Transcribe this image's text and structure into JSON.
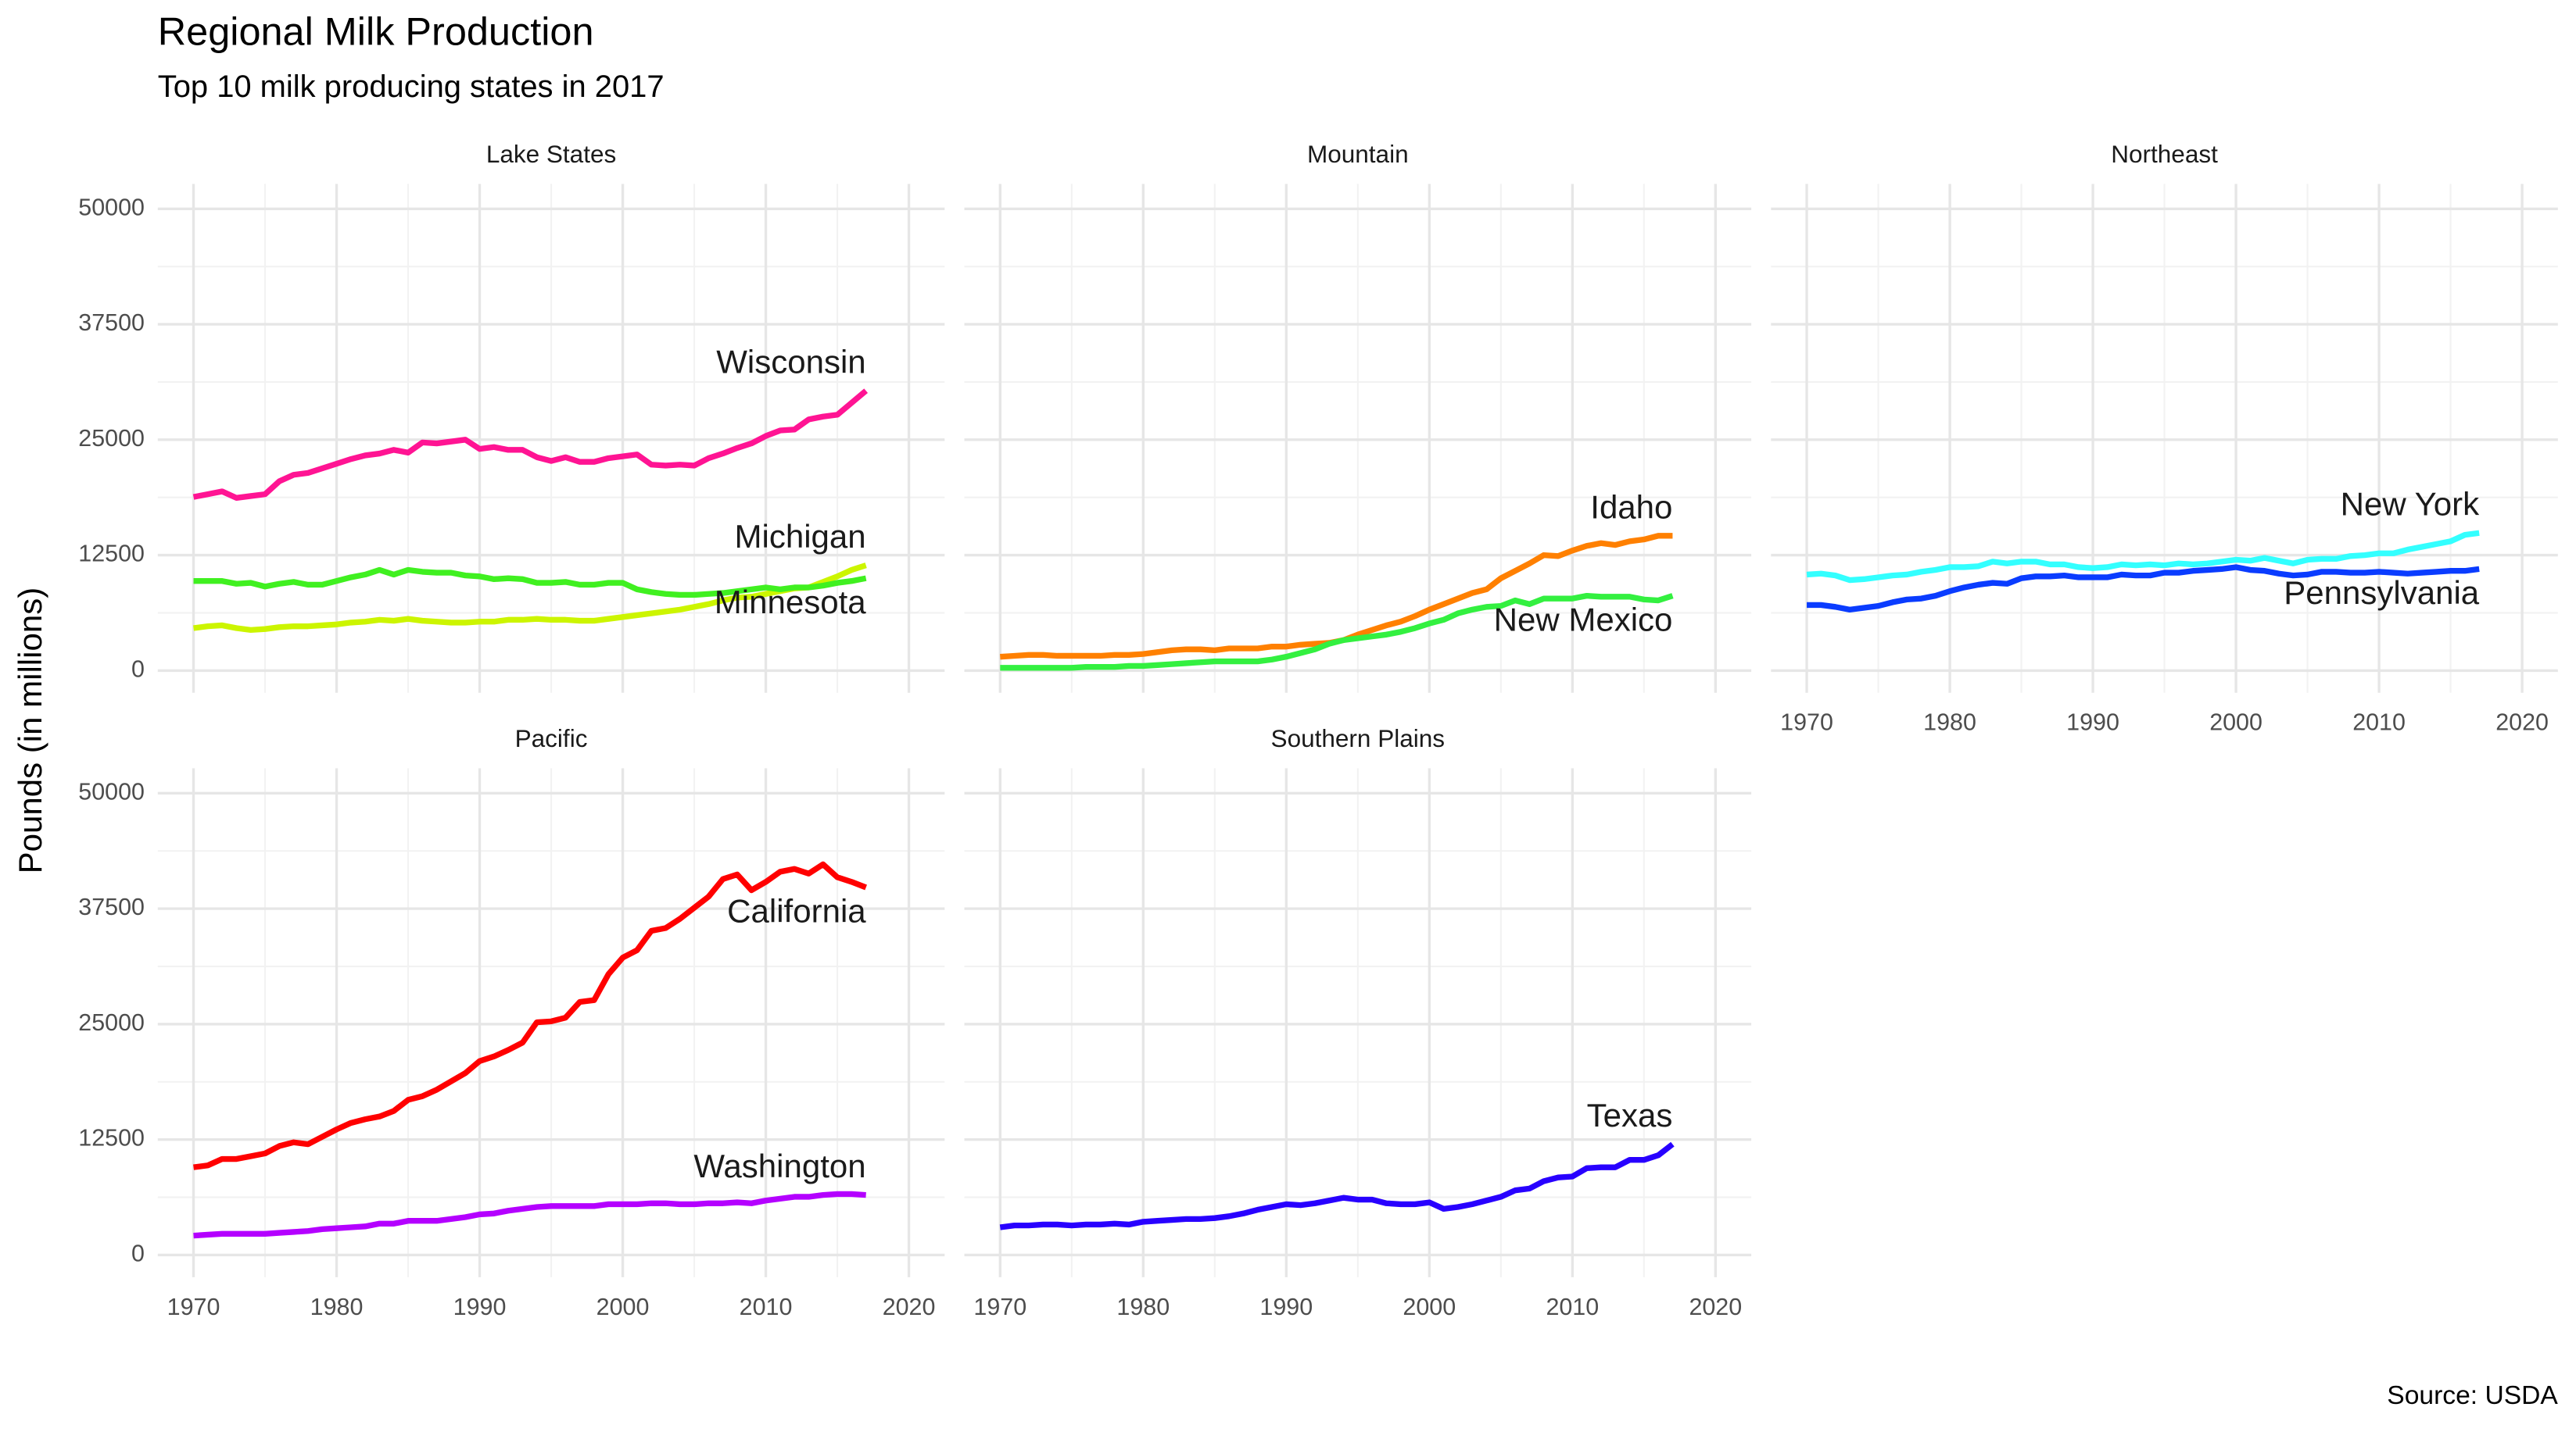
{
  "chart_data": {
    "type": "line",
    "title": "Regional Milk Production",
    "subtitle": "Top 10 milk producing states in 2017",
    "y_label": "Pounds (in millions)",
    "caption": "Source: USDA",
    "grid": true,
    "minor_grid": true,
    "xlim": [
      1967.5,
      2022.5
    ],
    "xticks": [
      1970,
      1980,
      1990,
      2000,
      2010,
      2020
    ],
    "ylim": [
      -2400,
      52700
    ],
    "yticks": [
      0,
      12500,
      25000,
      37500,
      50000
    ],
    "x": [
      1970,
      1971,
      1972,
      1973,
      1974,
      1975,
      1976,
      1977,
      1978,
      1979,
      1980,
      1981,
      1982,
      1983,
      1984,
      1985,
      1986,
      1987,
      1988,
      1989,
      1990,
      1991,
      1992,
      1993,
      1994,
      1995,
      1996,
      1997,
      1998,
      1999,
      2000,
      2001,
      2002,
      2003,
      2004,
      2005,
      2006,
      2007,
      2008,
      2009,
      2010,
      2011,
      2012,
      2013,
      2014,
      2015,
      2016,
      2017
    ],
    "panels": [
      {
        "title": "Lake States",
        "series": [
          {
            "name": "Wisconsin",
            "color": "#ff1493",
            "values": [
              18800,
              19100,
              19400,
              18700,
              18900,
              19100,
              20500,
              21200,
              21400,
              21900,
              22400,
              22900,
              23300,
              23500,
              23900,
              23600,
              24700,
              24600,
              24800,
              25000,
              24000,
              24200,
              23900,
              23900,
              23100,
              22700,
              23100,
              22600,
              22600,
              23000,
              23200,
              23400,
              22300,
              22200,
              22300,
              22200,
              23000,
              23500,
              24100,
              24600,
              25400,
              26000,
              26100,
              27200,
              27500,
              27700,
              29000,
              30300
            ]
          },
          {
            "name": "Michigan",
            "color": "#ccf500",
            "values": [
              4600,
              4800,
              4900,
              4600,
              4400,
              4500,
              4700,
              4800,
              4800,
              4900,
              5000,
              5200,
              5300,
              5500,
              5400,
              5600,
              5400,
              5300,
              5200,
              5200,
              5300,
              5300,
              5500,
              5500,
              5600,
              5500,
              5500,
              5400,
              5400,
              5600,
              5800,
              6000,
              6200,
              6400,
              6600,
              6900,
              7200,
              7600,
              7900,
              8000,
              8300,
              8600,
              8900,
              9000,
              9600,
              10200,
              10900,
              11400
            ]
          },
          {
            "name": "Minnesota",
            "color": "#40f020",
            "values": [
              9700,
              9700,
              9700,
              9400,
              9500,
              9100,
              9400,
              9600,
              9300,
              9300,
              9700,
              10100,
              10400,
              10900,
              10400,
              10900,
              10700,
              10600,
              10600,
              10300,
              10200,
              9900,
              10000,
              9900,
              9500,
              9500,
              9600,
              9300,
              9300,
              9500,
              9500,
              8800,
              8500,
              8300,
              8200,
              8200,
              8300,
              8400,
              8600,
              8800,
              9000,
              8800,
              9000,
              9000,
              9200,
              9500,
              9700,
              10000
            ]
          }
        ]
      },
      {
        "title": "Mountain",
        "series": [
          {
            "name": "Idaho",
            "color": "#ff8000",
            "values": [
              1500,
              1600,
              1700,
              1700,
              1600,
              1600,
              1600,
              1600,
              1700,
              1700,
              1800,
              2000,
              2200,
              2300,
              2300,
              2200,
              2400,
              2400,
              2400,
              2600,
              2600,
              2800,
              2900,
              3000,
              3300,
              3900,
              4400,
              4900,
              5300,
              5900,
              6600,
              7200,
              7800,
              8400,
              8800,
              10000,
              10800,
              11600,
              12500,
              12400,
              13000,
              13500,
              13800,
              13600,
              14000,
              14200,
              14600,
              14600
            ]
          },
          {
            "name": "New Mexico",
            "color": "#33f040",
            "values": [
              300,
              300,
              300,
              300,
              300,
              300,
              400,
              400,
              400,
              500,
              500,
              600,
              700,
              800,
              900,
              1000,
              1000,
              1000,
              1000,
              1200,
              1500,
              1900,
              2300,
              2900,
              3300,
              3500,
              3700,
              3900,
              4200,
              4600,
              5100,
              5500,
              6200,
              6600,
              6900,
              7000,
              7600,
              7200,
              7800,
              7800,
              7800,
              8100,
              8000,
              8000,
              8000,
              7700,
              7600,
              8100
            ]
          }
        ]
      },
      {
        "title": "Northeast",
        "series": [
          {
            "name": "New York",
            "color": "#33ffff",
            "values": [
              10400,
              10500,
              10300,
              9800,
              9900,
              10100,
              10300,
              10400,
              10700,
              10900,
              11200,
              11200,
              11300,
              11800,
              11600,
              11800,
              11800,
              11500,
              11500,
              11200,
              11100,
              11200,
              11500,
              11400,
              11500,
              11400,
              11600,
              11500,
              11600,
              11800,
              12000,
              11900,
              12200,
              11900,
              11600,
              12000,
              12100,
              12100,
              12400,
              12500,
              12700,
              12700,
              13100,
              13400,
              13700,
              14000,
              14700,
              14900
            ]
          },
          {
            "name": "Pennsylvania",
            "color": "#0a3cff",
            "values": [
              7100,
              7100,
              6900,
              6600,
              6800,
              7000,
              7400,
              7700,
              7800,
              8100,
              8600,
              9000,
              9300,
              9500,
              9400,
              10000,
              10200,
              10200,
              10300,
              10100,
              10100,
              10100,
              10400,
              10300,
              10300,
              10600,
              10600,
              10800,
              10900,
              11000,
              11200,
              10900,
              10800,
              10500,
              10300,
              10400,
              10700,
              10700,
              10600,
              10600,
              10700,
              10600,
              10500,
              10600,
              10700,
              10800,
              10800,
              11000
            ]
          }
        ]
      },
      {
        "title": "Pacific",
        "series": [
          {
            "name": "California",
            "color": "#ff0000",
            "values": [
              9500,
              9700,
              10400,
              10400,
              10700,
              11000,
              11800,
              12200,
              12000,
              12800,
              13600,
              14300,
              14700,
              15000,
              15600,
              16800,
              17200,
              17900,
              18800,
              19700,
              21000,
              21500,
              22200,
              23000,
              25200,
              25300,
              25700,
              27400,
              27600,
              30400,
              32200,
              33000,
              35100,
              35400,
              36400,
              37600,
              38800,
              40700,
              41200,
              39500,
              40400,
              41500,
              41800,
              41300,
              42300,
              40900,
              40400,
              39800
            ]
          },
          {
            "name": "Washington",
            "color": "#b400ff",
            "values": [
              2100,
              2200,
              2300,
              2300,
              2300,
              2300,
              2400,
              2500,
              2600,
              2800,
              2900,
              3000,
              3100,
              3400,
              3400,
              3700,
              3700,
              3700,
              3900,
              4100,
              4400,
              4500,
              4800,
              5000,
              5200,
              5300,
              5300,
              5300,
              5300,
              5500,
              5500,
              5500,
              5600,
              5600,
              5500,
              5500,
              5600,
              5600,
              5700,
              5600,
              5900,
              6100,
              6300,
              6300,
              6500,
              6600,
              6600,
              6500
            ]
          }
        ]
      },
      {
        "title": "Southern Plains",
        "series": [
          {
            "name": "Texas",
            "color": "#2800ff",
            "values": [
              3000,
              3200,
              3200,
              3300,
              3300,
              3200,
              3300,
              3300,
              3400,
              3300,
              3600,
              3700,
              3800,
              3900,
              3900,
              4000,
              4200,
              4500,
              4900,
              5200,
              5500,
              5400,
              5600,
              5900,
              6200,
              6000,
              6000,
              5600,
              5500,
              5500,
              5700,
              5000,
              5200,
              5500,
              5900,
              6300,
              7000,
              7200,
              8000,
              8400,
              8500,
              9400,
              9500,
              9500,
              10300,
              10300,
              10800,
              12000
            ]
          }
        ]
      }
    ]
  }
}
